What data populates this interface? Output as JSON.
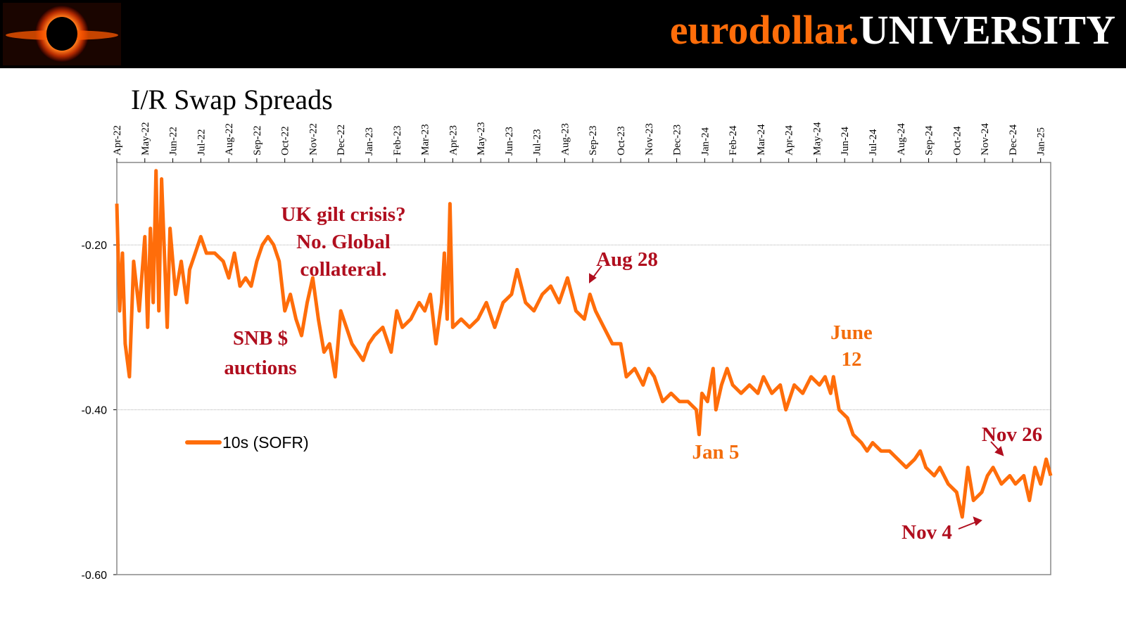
{
  "header": {
    "brand": [
      "eurodollar.",
      "UNIVERSITY"
    ]
  },
  "chart_data": {
    "type": "line",
    "title": "I/R Swap Spreads",
    "xlim": [
      0,
      33.36
    ],
    "xticks": [
      {
        "value": 0,
        "label": "Apr-22"
      },
      {
        "value": 1,
        "label": "May-22"
      },
      {
        "value": 2,
        "label": "Jun-22"
      },
      {
        "value": 3,
        "label": "Jul-22"
      },
      {
        "value": 4,
        "label": "Aug-22"
      },
      {
        "value": 5,
        "label": "Sep-22"
      },
      {
        "value": 6,
        "label": "Oct-22"
      },
      {
        "value": 7,
        "label": "Nov-22"
      },
      {
        "value": 8,
        "label": "Dec-22"
      },
      {
        "value": 9,
        "label": "Jan-23"
      },
      {
        "value": 10,
        "label": "Feb-23"
      },
      {
        "value": 11,
        "label": "Mar-23"
      },
      {
        "value": 12,
        "label": "Apr-23"
      },
      {
        "value": 13,
        "label": "May-23"
      },
      {
        "value": 14,
        "label": "Jun-23"
      },
      {
        "value": 15,
        "label": "Jul-23"
      },
      {
        "value": 16,
        "label": "Aug-23"
      },
      {
        "value": 17,
        "label": "Sep-23"
      },
      {
        "value": 18,
        "label": "Oct-23"
      },
      {
        "value": 19,
        "label": "Nov-23"
      },
      {
        "value": 20,
        "label": "Dec-23"
      },
      {
        "value": 21,
        "label": "Jan-24"
      },
      {
        "value": 22,
        "label": "Feb-24"
      },
      {
        "value": 23,
        "label": "Mar-24"
      },
      {
        "value": 24,
        "label": "Apr-24"
      },
      {
        "value": 25,
        "label": "May-24"
      },
      {
        "value": 26,
        "label": "Jun-24"
      },
      {
        "value": 27,
        "label": "Jul-24"
      },
      {
        "value": 28,
        "label": "Aug-24"
      },
      {
        "value": 29,
        "label": "Sep-24"
      },
      {
        "value": 30,
        "label": "Oct-24"
      },
      {
        "value": 31,
        "label": "Nov-24"
      },
      {
        "value": 32,
        "label": "Dec-24"
      },
      {
        "value": 33,
        "label": "Jan-25"
      }
    ],
    "ylim": [
      -0.6,
      -0.1
    ],
    "yticks": [
      {
        "value": -0.6,
        "label": "-0.60"
      },
      {
        "value": -0.4,
        "label": "-0.40"
      },
      {
        "value": -0.2,
        "label": "-0.20"
      }
    ],
    "grid": true,
    "legend": "left",
    "x": [
      0,
      0.1,
      0.2,
      0.3,
      0.45,
      0.6,
      0.8,
      1.0,
      1.1,
      1.2,
      1.3,
      1.4,
      1.5,
      1.6,
      1.8,
      1.9,
      2.1,
      2.3,
      2.5,
      2.6,
      2.8,
      3.0,
      3.2,
      3.5,
      3.8,
      4.0,
      4.2,
      4.4,
      4.6,
      4.8,
      5.0,
      5.2,
      5.4,
      5.6,
      5.8,
      6.0,
      6.2,
      6.4,
      6.6,
      6.8,
      7.0,
      7.2,
      7.4,
      7.6,
      7.8,
      8.0,
      8.2,
      8.4,
      8.6,
      8.8,
      9.0,
      9.2,
      9.5,
      9.8,
      10.0,
      10.2,
      10.5,
      10.8,
      11.0,
      11.2,
      11.4,
      11.6,
      11.7,
      11.8,
      11.9,
      12.0,
      12.3,
      12.6,
      12.9,
      13.2,
      13.5,
      13.8,
      14.1,
      14.3,
      14.6,
      14.9,
      15.2,
      15.5,
      15.8,
      16.1,
      16.4,
      16.7,
      16.9,
      17.1,
      17.4,
      17.7,
      18.0,
      18.2,
      18.5,
      18.8,
      19.0,
      19.2,
      19.5,
      19.8,
      20.1,
      20.4,
      20.7,
      20.8,
      20.9,
      21.1,
      21.3,
      21.4,
      21.6,
      21.8,
      22.0,
      22.3,
      22.6,
      22.9,
      23.1,
      23.4,
      23.7,
      23.9,
      24.2,
      24.5,
      24.8,
      25.1,
      25.3,
      25.5,
      25.6,
      25.8,
      26.1,
      26.3,
      26.6,
      26.8,
      27.0,
      27.3,
      27.6,
      27.9,
      28.2,
      28.5,
      28.7,
      28.9,
      29.2,
      29.4,
      29.7,
      30.0,
      30.2,
      30.4,
      30.6,
      30.9,
      31.1,
      31.3,
      31.6,
      31.9,
      32.1,
      32.4,
      32.6,
      32.8,
      33.0,
      33.2,
      33.36
    ],
    "series": [
      {
        "name": "10s (SOFR)",
        "color": "#ff6d0a",
        "values": [
          -0.15,
          -0.28,
          -0.21,
          -0.32,
          -0.36,
          -0.22,
          -0.28,
          -0.19,
          -0.3,
          -0.18,
          -0.27,
          -0.11,
          -0.28,
          -0.12,
          -0.3,
          -0.18,
          -0.26,
          -0.22,
          -0.27,
          -0.23,
          -0.21,
          -0.19,
          -0.21,
          -0.21,
          -0.22,
          -0.24,
          -0.21,
          -0.25,
          -0.24,
          -0.25,
          -0.22,
          -0.2,
          -0.19,
          -0.2,
          -0.22,
          -0.28,
          -0.26,
          -0.29,
          -0.31,
          -0.27,
          -0.24,
          -0.29,
          -0.33,
          -0.32,
          -0.36,
          -0.28,
          -0.3,
          -0.32,
          -0.33,
          -0.34,
          -0.32,
          -0.31,
          -0.3,
          -0.33,
          -0.28,
          -0.3,
          -0.29,
          -0.27,
          -0.28,
          -0.26,
          -0.32,
          -0.27,
          -0.21,
          -0.29,
          -0.15,
          -0.3,
          -0.29,
          -0.3,
          -0.29,
          -0.27,
          -0.3,
          -0.27,
          -0.26,
          -0.23,
          -0.27,
          -0.28,
          -0.26,
          -0.25,
          -0.27,
          -0.24,
          -0.28,
          -0.29,
          -0.26,
          -0.28,
          -0.3,
          -0.32,
          -0.32,
          -0.36,
          -0.35,
          -0.37,
          -0.35,
          -0.36,
          -0.39,
          -0.38,
          -0.39,
          -0.39,
          -0.4,
          -0.43,
          -0.38,
          -0.39,
          -0.35,
          -0.4,
          -0.37,
          -0.35,
          -0.37,
          -0.38,
          -0.37,
          -0.38,
          -0.36,
          -0.38,
          -0.37,
          -0.4,
          -0.37,
          -0.38,
          -0.36,
          -0.37,
          -0.36,
          -0.38,
          -0.36,
          -0.4,
          -0.41,
          -0.43,
          -0.44,
          -0.45,
          -0.44,
          -0.45,
          -0.45,
          -0.46,
          -0.47,
          -0.46,
          -0.45,
          -0.47,
          -0.48,
          -0.47,
          -0.49,
          -0.5,
          -0.53,
          -0.47,
          -0.51,
          -0.5,
          -0.48,
          -0.47,
          -0.49,
          -0.48,
          -0.49,
          -0.48,
          -0.51,
          -0.47,
          -0.49,
          -0.46,
          -0.48
        ]
      }
    ],
    "annotations": [
      {
        "lines": [
          "UK gilt crisis?",
          "No. Global",
          "collateral."
        ],
        "color": "#b00e1e"
      },
      {
        "lines": [
          "SNB $",
          "auctions"
        ],
        "color": "#b00e1e"
      },
      {
        "lines": [
          "Aug 28"
        ],
        "color": "#b00e1e"
      },
      {
        "lines": [
          "June",
          "12"
        ],
        "color": "#f36c0b"
      },
      {
        "lines": [
          "Jan 5"
        ],
        "color": "#f36c0b"
      },
      {
        "lines": [
          "Nov 26"
        ],
        "color": "#b00e1e"
      },
      {
        "lines": [
          "Nov 4"
        ],
        "color": "#b00e1e"
      }
    ]
  }
}
